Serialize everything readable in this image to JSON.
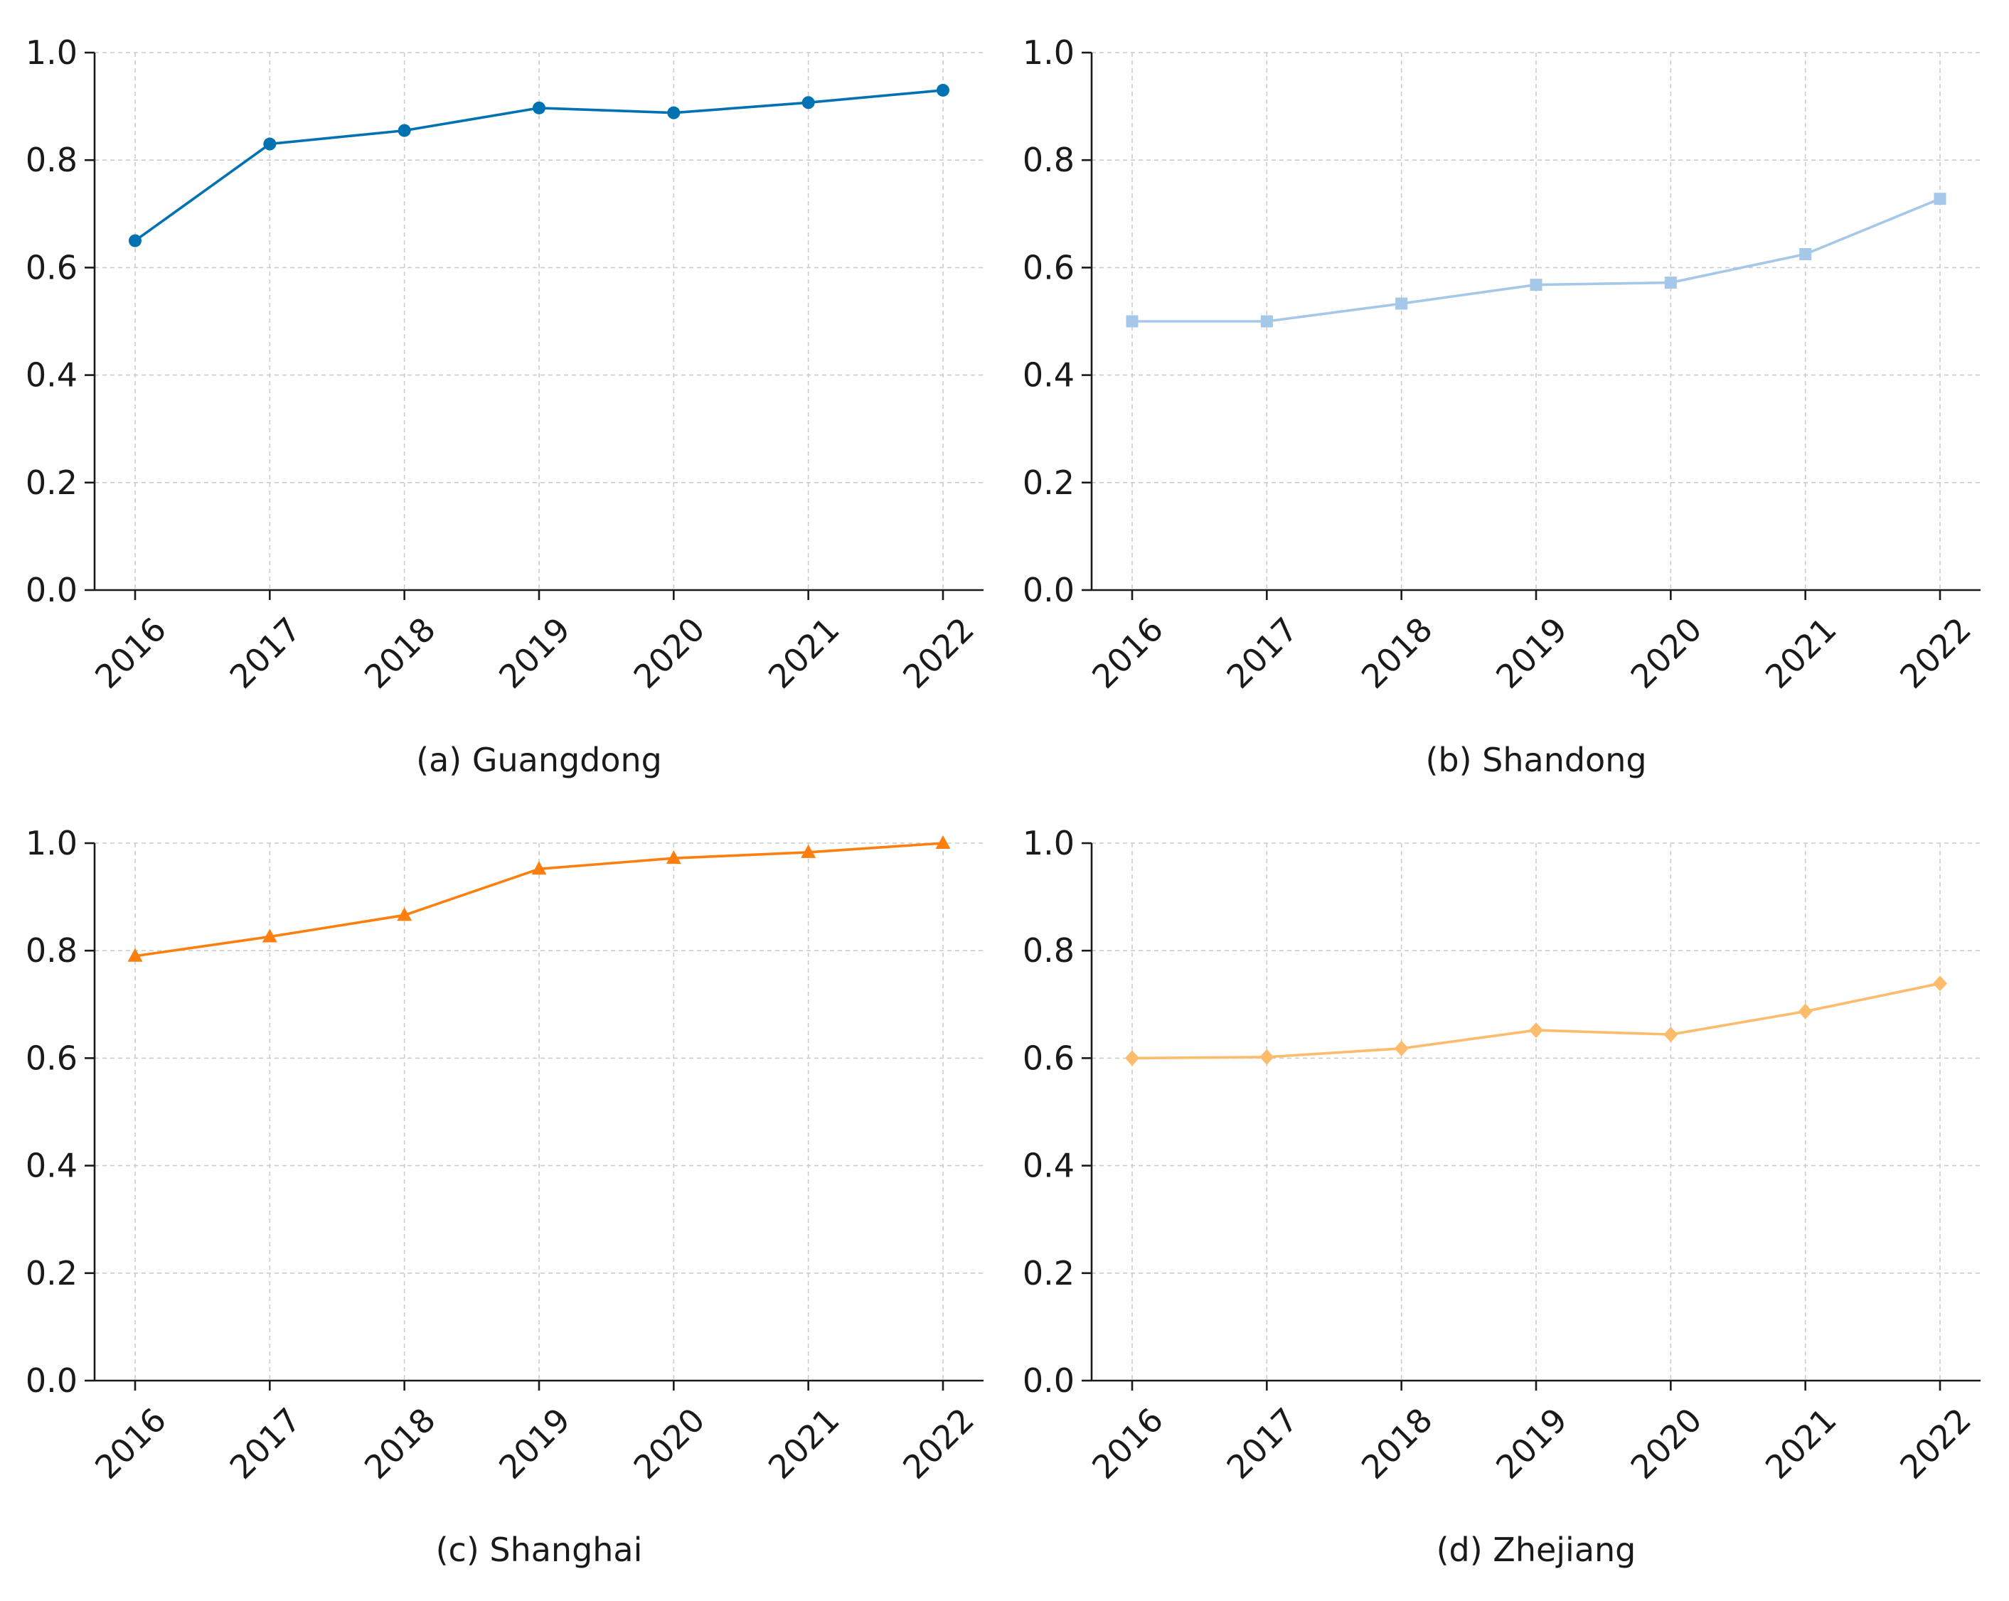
{
  "chart_data": [
    {
      "type": "line",
      "caption": "(a) Guangdong",
      "color": "#0072b2",
      "marker": "circle",
      "categories": [
        "2016",
        "2017",
        "2018",
        "2019",
        "2020",
        "2021",
        "2022"
      ],
      "values": [
        0.65,
        0.83,
        0.855,
        0.897,
        0.888,
        0.907,
        0.93
      ],
      "ylim": [
        0.0,
        1.0
      ],
      "yticks": [
        "0.0",
        "0.2",
        "0.4",
        "0.6",
        "0.8",
        "1.0"
      ],
      "grid": true
    },
    {
      "type": "line",
      "caption": "(b) Shandong",
      "color": "#a6c8e8",
      "marker": "square",
      "categories": [
        "2016",
        "2017",
        "2018",
        "2019",
        "2020",
        "2021",
        "2022"
      ],
      "values": [
        0.5,
        0.5,
        0.533,
        0.568,
        0.572,
        0.625,
        0.728
      ],
      "ylim": [
        0.0,
        1.0
      ],
      "yticks": [
        "0.0",
        "0.2",
        "0.4",
        "0.6",
        "0.8",
        "1.0"
      ],
      "grid": true
    },
    {
      "type": "line",
      "caption": "(c) Shanghai",
      "color": "#ff7f0e",
      "marker": "triangle",
      "categories": [
        "2016",
        "2017",
        "2018",
        "2019",
        "2020",
        "2021",
        "2022"
      ],
      "values": [
        0.79,
        0.826,
        0.866,
        0.952,
        0.972,
        0.983,
        1.0
      ],
      "ylim": [
        0.0,
        1.0
      ],
      "yticks": [
        "0.0",
        "0.2",
        "0.4",
        "0.6",
        "0.8",
        "1.0"
      ],
      "grid": true
    },
    {
      "type": "line",
      "caption": "(d) Zhejiang",
      "color": "#fdbb6c",
      "marker": "diamond",
      "categories": [
        "2016",
        "2017",
        "2018",
        "2019",
        "2020",
        "2021",
        "2022"
      ],
      "values": [
        0.6,
        0.602,
        0.618,
        0.652,
        0.644,
        0.687,
        0.739
      ],
      "ylim": [
        0.0,
        1.0
      ],
      "yticks": [
        "0.0",
        "0.2",
        "0.4",
        "0.6",
        "0.8",
        "1.0"
      ],
      "grid": true
    }
  ]
}
